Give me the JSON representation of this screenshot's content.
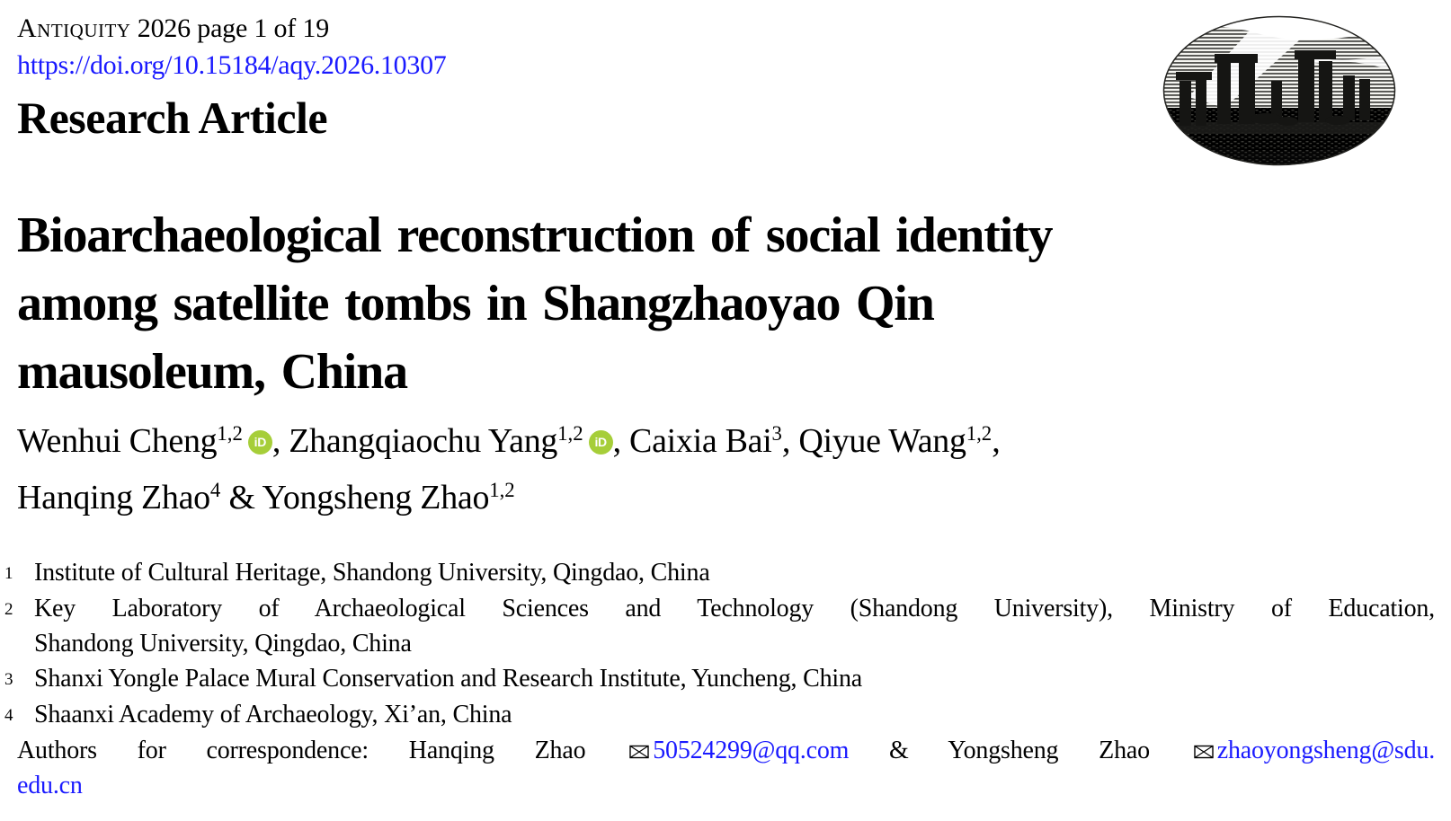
{
  "page": {
    "link_color": "#1a1aff",
    "orcid_color": "#a6ce39",
    "text_color": "#000000",
    "background": "#ffffff"
  },
  "header": {
    "journal": "Antiquity",
    "issue_info": " 2026 page 1 of 19",
    "doi": "https://doi.org/10.15184/aqy.2026.10307",
    "section_label": "Research Article",
    "logo": "antiquity-stonehenge-engraving"
  },
  "title": {
    "lines": [
      "Bioarchaeological reconstruction of social identity",
      "among satellite tombs in Shangzhaoyao Qin",
      "mausoleum, China"
    ]
  },
  "orcid_icon_label": "iD",
  "authors": [
    {
      "name": "Wenhui Cheng",
      "sup": "1,2",
      "orcid": true,
      "sep": ", "
    },
    {
      "name": "Zhangqiaochu Yang",
      "sup": "1,2",
      "orcid": true,
      "sep": ", "
    },
    {
      "name": "Caixia Bai",
      "sup": "3",
      "orcid": false,
      "sep": ", "
    },
    {
      "name": "Qiyue Wang",
      "sup": "1,2",
      "orcid": false,
      "sep": ",",
      "break_after": true
    },
    {
      "name": "Hanqing Zhao",
      "sup": "4",
      "orcid": false,
      "sep": " & "
    },
    {
      "name": "Yongsheng Zhao",
      "sup": "1,2",
      "orcid": false
    }
  ],
  "affiliations": [
    {
      "sup": "1",
      "lines": [
        "Institute of Cultural Heritage, Shandong University, Qingdao, China"
      ]
    },
    {
      "sup": "2",
      "justify_first": true,
      "lines": [
        "Key Laboratory of Archaeological Sciences and Technology (Shandong University), Ministry of Education,",
        "Shandong University, Qingdao, China"
      ]
    },
    {
      "sup": "3",
      "lines": [
        "Shanxi Yongle Palace Mural Conservation and Research Institute, Yuncheng, China"
      ]
    },
    {
      "sup": "4",
      "lines": [
        "Shaanxi Academy of Archaeology, Xi’an, China"
      ]
    }
  ],
  "correspondence": {
    "line1": [
      {
        "t": "text",
        "v": "Authors for correspondence: Hanqing Zhao "
      },
      {
        "t": "envelope"
      },
      {
        "t": "email",
        "v": "50524299@qq.com"
      },
      {
        "t": "text",
        "v": " & Yongsheng Zhao "
      },
      {
        "t": "envelope"
      },
      {
        "t": "email",
        "v": "zhaoyongsheng@sdu."
      }
    ],
    "line2": [
      {
        "t": "email",
        "v": "edu.cn"
      }
    ]
  }
}
